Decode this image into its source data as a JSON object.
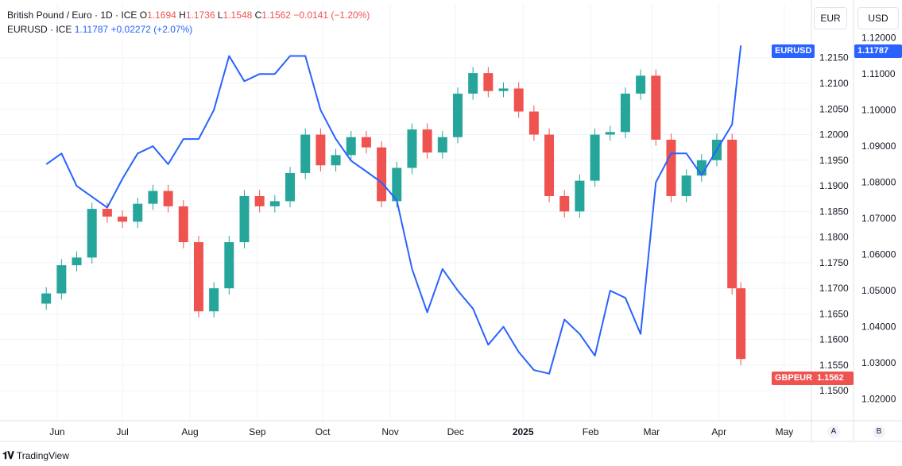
{
  "legend": {
    "main_title": "British Pound / Euro · 1D · ICE",
    "open_label": "O",
    "open": "1.1694",
    "high_label": "H",
    "high": "1.1736",
    "low_label": "L",
    "low": "1.1548",
    "close_label": "C",
    "close": "1.1562",
    "change": "−0.0141 (−1.20%)",
    "compare_title": "EURUSD · ICE",
    "compare_value": "1.11787",
    "compare_change": "+0.02272 (+2.07%)"
  },
  "scale_buttons": {
    "left": "EUR",
    "right": "USD"
  },
  "badges": {
    "eurusd_name": "EURUSD",
    "eurusd_value": "1.11787",
    "gbpeur_name": "GBPEUR",
    "gbpeur_value": "1.1562"
  },
  "bottom_buttons": {
    "a": "A",
    "b": "B"
  },
  "brand": "TradingView",
  "colors": {
    "up": "#26a69a",
    "down": "#ef5350",
    "compare": "#2962ff",
    "grid": "#f0f3fa"
  },
  "chart_data": {
    "type": "line",
    "title": "British Pound / Euro",
    "x_tick_labels": [
      "Jun",
      "Jul",
      "Aug",
      "Sep",
      "Oct",
      "Nov",
      "Dec",
      "2025",
      "Feb",
      "Mar",
      "Apr",
      "May"
    ],
    "left_axis": {
      "currency": "EUR",
      "ticks": [
        "1.2150",
        "1.2100",
        "1.2050",
        "1.2000",
        "1.1950",
        "1.1900",
        "1.1850",
        "1.1800",
        "1.1750",
        "1.1700",
        "1.1650",
        "1.1600",
        "1.1550",
        "1.1500"
      ],
      "range": [
        1.146,
        1.2193
      ]
    },
    "right_axis": {
      "currency": "USD",
      "ticks": [
        "1.12000",
        "1.11000",
        "1.10000",
        "1.09000",
        "1.08000",
        "1.07000",
        "1.06000",
        "1.05000",
        "1.04000",
        "1.03000",
        "1.02000"
      ],
      "range": [
        1.0166,
        1.1206
      ]
    },
    "grid": true,
    "series": [
      {
        "name": "GBPEUR",
        "kind": "candlestick-closes",
        "axis": "left",
        "x": [
          "2024-05-27",
          "2024-06-03",
          "2024-06-10",
          "2024-06-17",
          "2024-06-24",
          "2024-07-01",
          "2024-07-08",
          "2024-07-15",
          "2024-07-22",
          "2024-07-29",
          "2024-08-05",
          "2024-08-12",
          "2024-08-19",
          "2024-08-26",
          "2024-09-02",
          "2024-09-09",
          "2024-09-16",
          "2024-09-23",
          "2024-09-30",
          "2024-10-07",
          "2024-10-14",
          "2024-10-21",
          "2024-10-28",
          "2024-11-04",
          "2024-11-11",
          "2024-11-18",
          "2024-11-25",
          "2024-12-02",
          "2024-12-09",
          "2024-12-16",
          "2024-12-23",
          "2024-12-30",
          "2025-01-06",
          "2025-01-13",
          "2025-01-20",
          "2025-01-27",
          "2025-02-03",
          "2025-02-10",
          "2025-02-17",
          "2025-02-24",
          "2025-03-03",
          "2025-03-10",
          "2025-03-17",
          "2025-03-24",
          "2025-03-31",
          "2025-04-07",
          "2025-04-11"
        ],
        "y": [
          1.169,
          1.1745,
          1.176,
          1.1855,
          1.184,
          1.183,
          1.1865,
          1.189,
          1.186,
          1.179,
          1.1655,
          1.17,
          1.179,
          1.188,
          1.186,
          1.187,
          1.1925,
          1.2,
          1.194,
          1.196,
          1.1995,
          1.1975,
          1.187,
          1.1935,
          1.201,
          1.1965,
          1.1995,
          1.208,
          1.212,
          1.2085,
          1.209,
          1.2045,
          1.2,
          1.188,
          1.185,
          1.191,
          1.2,
          1.2005,
          1.208,
          1.2115,
          1.199,
          1.188,
          1.192,
          1.195,
          1.199,
          1.17,
          1.1562
        ]
      },
      {
        "name": "EURUSD",
        "kind": "line",
        "axis": "right",
        "x": [
          "2024-05-27",
          "2024-06-03",
          "2024-06-10",
          "2024-06-17",
          "2024-06-24",
          "2024-07-01",
          "2024-07-08",
          "2024-07-15",
          "2024-07-22",
          "2024-07-29",
          "2024-08-05",
          "2024-08-12",
          "2024-08-19",
          "2024-08-26",
          "2024-09-02",
          "2024-09-09",
          "2024-09-16",
          "2024-09-23",
          "2024-09-30",
          "2024-10-07",
          "2024-10-14",
          "2024-10-21",
          "2024-10-28",
          "2024-11-04",
          "2024-11-11",
          "2024-11-18",
          "2024-11-25",
          "2024-12-02",
          "2024-12-09",
          "2024-12-16",
          "2024-12-23",
          "2024-12-30",
          "2025-01-06",
          "2025-01-13",
          "2025-01-20",
          "2025-01-27",
          "2025-02-03",
          "2025-02-10",
          "2025-02-17",
          "2025-02-24",
          "2025-03-03",
          "2025-03-10",
          "2025-03-17",
          "2025-03-24",
          "2025-03-31",
          "2025-04-07",
          "2025-04-11"
        ],
        "y": [
          1.085,
          1.088,
          1.079,
          1.076,
          1.073,
          1.081,
          1.088,
          1.09,
          1.085,
          1.092,
          1.092,
          1.1,
          1.115,
          1.108,
          1.11,
          1.11,
          1.115,
          1.115,
          1.1,
          1.092,
          1.086,
          1.083,
          1.08,
          1.075,
          1.056,
          1.044,
          1.056,
          1.05,
          1.045,
          1.035,
          1.04,
          1.033,
          1.028,
          1.027,
          1.042,
          1.038,
          1.032,
          1.05,
          1.048,
          1.038,
          1.08,
          1.088,
          1.088,
          1.082,
          1.089,
          1.096,
          1.1179
        ]
      }
    ]
  }
}
